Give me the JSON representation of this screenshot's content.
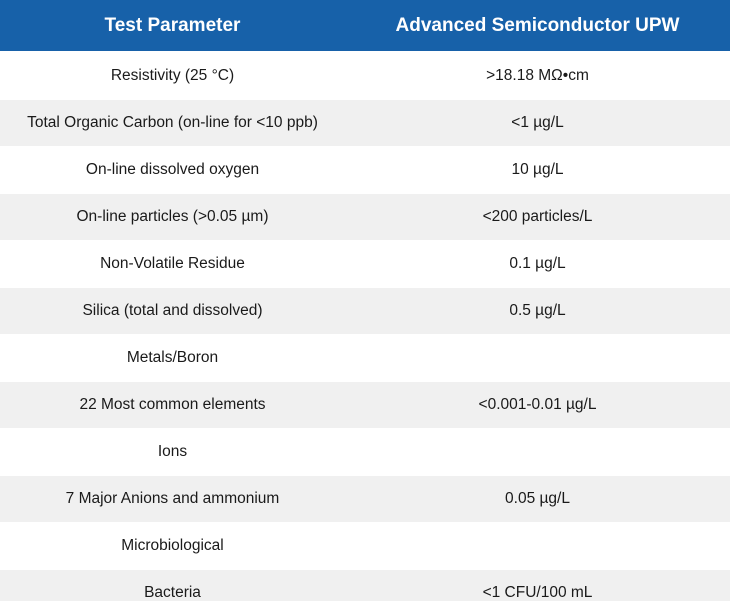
{
  "table": {
    "headers": [
      "Test Parameter",
      "Advanced Semiconductor UPW"
    ],
    "rows": [
      [
        "Resistivity (25 °C)",
        ">18.18 MΩ•cm"
      ],
      [
        "Total Organic Carbon (on-line for <10 ppb)",
        "<1 µg/L"
      ],
      [
        "On-line dissolved oxygen",
        "10 µg/L"
      ],
      [
        "On-line particles (>0.05 µm)",
        "<200 particles/L"
      ],
      [
        "Non-Volatile Residue",
        "0.1 µg/L"
      ],
      [
        "Silica (total and dissolved)",
        "0.5 µg/L"
      ],
      [
        "Metals/Boron",
        ""
      ],
      [
        "22 Most common elements",
        "<0.001-0.01 µg/L"
      ],
      [
        "Ions",
        ""
      ],
      [
        "7 Major Anions and ammonium",
        "0.05 µg/L"
      ],
      [
        "Microbiological",
        ""
      ],
      [
        "Bacteria",
        "<1 CFU/100 mL"
      ]
    ]
  },
  "colors": {
    "header_bg": "#1761a9",
    "header_text": "#ffffff",
    "row_alt_bg": "#f0f0f0"
  }
}
